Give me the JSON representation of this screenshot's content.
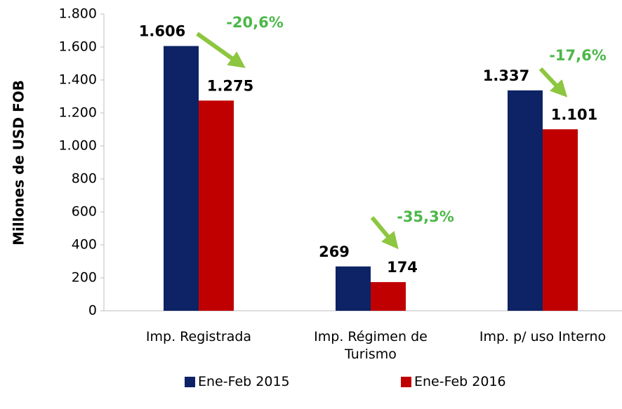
{
  "chart_data": {
    "type": "bar",
    "y_axis_label": "Millones de USD FOB",
    "categories": [
      "Imp. Registrada",
      "Imp. Régimen de Turismo",
      "Imp. p/ uso Interno"
    ],
    "series": [
      {
        "name": "Ene-Feb 2015",
        "color": "#0d2365",
        "values": [
          1606,
          269,
          1337
        ],
        "value_labels": [
          "1.606",
          "269",
          "1.337"
        ]
      },
      {
        "name": "Ene-Feb 2016",
        "color": "#c00000",
        "values": [
          1275,
          174,
          1101
        ],
        "value_labels": [
          "1.275",
          "174",
          "1.101"
        ]
      }
    ],
    "annotations": [
      "-20,6%",
      "-35,3%",
      "-17,6%"
    ],
    "annotation_color": "#4cb748",
    "ylim": [
      0,
      1800
    ],
    "yticks": [
      0,
      200,
      400,
      600,
      800,
      {
        "value": 1000,
        "label": "1.000"
      },
      {
        "value": 1200,
        "label": "1.200"
      },
      {
        "value": 1400,
        "label": "1.400"
      },
      {
        "value": 1600,
        "label": "1.600"
      },
      {
        "value": 1800,
        "label": "1.800"
      }
    ],
    "grid": false
  }
}
